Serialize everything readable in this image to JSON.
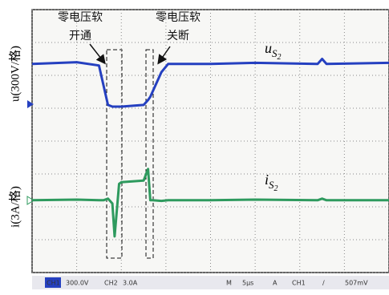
{
  "chart_data": {
    "type": "line",
    "ylabels": [
      "u(300V/格)",
      "i(3A/格)"
    ],
    "annotations": [
      {
        "lines": [
          "零电压软",
          "开通"
        ]
      },
      {
        "lines": [
          "零电压软",
          "关断"
        ]
      }
    ],
    "xlim": [
      0,
      8
    ],
    "ylim": [
      -4,
      4
    ],
    "xticks": [
      0,
      1,
      2,
      3,
      4,
      5,
      6,
      7,
      8
    ],
    "yticks": [
      -4,
      -3,
      -2,
      -1,
      0,
      1,
      2,
      3,
      4
    ],
    "grid": true,
    "x": [
      0,
      1.0,
      1.5,
      1.6,
      1.7,
      1.8,
      1.85,
      1.95,
      2.0,
      2.5,
      2.6,
      2.65,
      2.7,
      2.9,
      3.05,
      4,
      5,
      6.4,
      6.5,
      6.6,
      8
    ],
    "series": [
      {
        "name": "uS2",
        "color": "#2540c0",
        "values": [
          2.35,
          2.4,
          2.3,
          1.7,
          1.1,
          1.05,
          1.05,
          1.05,
          1.05,
          1.1,
          1.25,
          1.35,
          1.5,
          2.1,
          2.35,
          2.35,
          2.38,
          2.35,
          2.5,
          2.35,
          2.38
        ]
      },
      {
        "name": "iS2",
        "color": "#2e9a5e",
        "values": [
          -1.8,
          -1.78,
          -1.8,
          -1.8,
          -1.75,
          -1.9,
          -2.9,
          -1.3,
          -1.25,
          -1.2,
          -0.85,
          -1.8,
          -1.8,
          -1.82,
          -1.8,
          -1.8,
          -1.78,
          -1.8,
          -1.75,
          -1.8,
          -1.8
        ]
      }
    ],
    "status_bar": [
      "CH1",
      "300.0V",
      "CH2",
      "3.0A",
      "M",
      "5μs",
      "A",
      "CH1",
      "/",
      "507mV"
    ]
  }
}
